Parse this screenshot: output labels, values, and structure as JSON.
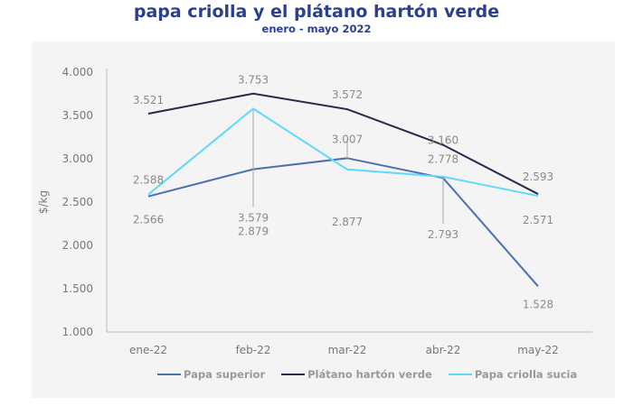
{
  "title": "papa criolla y el plátano hartón verde",
  "subtitle": "enero - mayo 2022",
  "chart_data": {
    "type": "line",
    "title": "papa criolla y el plátano hartón verde",
    "subtitle": "enero - mayo 2022",
    "xlabel": "",
    "ylabel": "$/kg",
    "categories": [
      "ene-22",
      "feb-22",
      "mar-22",
      "abr-22",
      "may-22"
    ],
    "ylim": [
      1000,
      4000
    ],
    "yticks": [
      1000,
      1500,
      2000,
      2500,
      3000,
      3500,
      4000
    ],
    "ytick_labels": [
      "1.000",
      "1.500",
      "2.000",
      "2.500",
      "3.000",
      "3.500",
      "4.000"
    ],
    "grid": false,
    "legend": "bottom",
    "series": [
      {
        "name": "Papa superior",
        "color": "#4a6fb5",
        "values": [
          2566,
          2879,
          3007,
          2778,
          1528
        ],
        "labels": [
          "2.566",
          "2.879",
          "3.007",
          "2.778",
          "1.528"
        ]
      },
      {
        "name": "Plátano hartón verde",
        "color": "#262c4e",
        "values": [
          3521,
          3753,
          3572,
          3160,
          2593
        ],
        "labels": [
          "3.521",
          "3.753",
          "3.572",
          "3.160",
          "2.593"
        ]
      },
      {
        "name": "Papa criolla sucia",
        "color": "#5fd8ff",
        "values": [
          2588,
          3579,
          2877,
          2793,
          2571
        ],
        "labels": [
          "2.588",
          "3.579",
          "2.877",
          "2.793",
          "2.571"
        ]
      }
    ]
  }
}
